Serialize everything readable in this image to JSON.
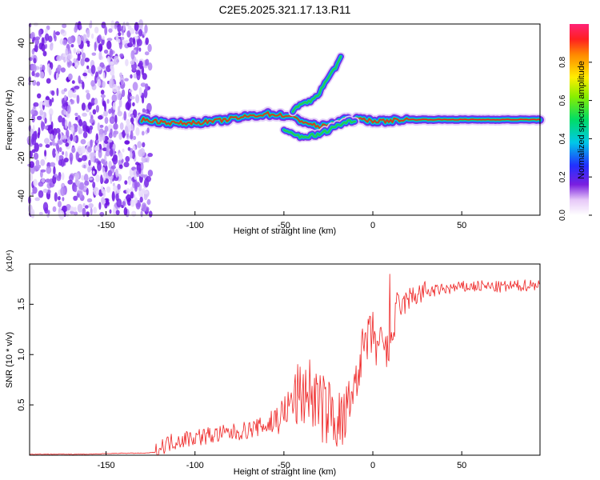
{
  "title": "C2E5.2025.321.17.13.R11",
  "colors": {
    "background": "#ffffff",
    "axis": "#000000",
    "snr_line": "#ee2222",
    "spectrum_low": "#7a1fe0",
    "spectrum_mid": "#22cc55",
    "spectrum_high": "#ee2222"
  },
  "chart_data": [
    {
      "type": "heatmap",
      "title": "",
      "xlabel": "Height of straight line (km)",
      "ylabel": "Frequency (Hz)",
      "xlim": [
        -193,
        94
      ],
      "ylim": [
        -50,
        50
      ],
      "x_ticks": [
        -150,
        -100,
        -50,
        0,
        50
      ],
      "x_tick_labels": [
        "-150",
        "-100",
        "-50",
        "0",
        "50"
      ],
      "y_ticks": [
        -40,
        -20,
        0,
        20,
        40
      ],
      "y_tick_labels": [
        "-40",
        "-20",
        "0",
        "20",
        "40"
      ],
      "noise_region_x": [
        -193,
        -125
      ],
      "signal_tracks": [
        {
          "name": "main",
          "points": [
            [
              -130,
              0
            ],
            [
              -110,
              -2
            ],
            [
              -90,
              -1
            ],
            [
              -75,
              1
            ],
            [
              -60,
              3
            ],
            [
              -48,
              2
            ],
            [
              -30,
              -4
            ],
            [
              -15,
              0
            ],
            [
              -5,
              0
            ],
            [
              5,
              -1
            ],
            [
              15,
              0
            ],
            [
              94,
              0
            ]
          ]
        },
        {
          "name": "upper branch",
          "points": [
            [
              -45,
              5
            ],
            [
              -35,
              10
            ],
            [
              -30,
              14
            ],
            [
              -25,
              22
            ],
            [
              -18,
              32
            ]
          ]
        },
        {
          "name": "lower branch",
          "points": [
            [
              -50,
              -6
            ],
            [
              -40,
              -9
            ],
            [
              -30,
              -8
            ],
            [
              -20,
              -3
            ],
            [
              -10,
              0
            ]
          ]
        }
      ],
      "colorbar": {
        "label": "Normalized spectral amplitude",
        "range": [
          0,
          1
        ],
        "ticks": [
          0.0,
          0.2,
          0.4,
          0.6,
          0.8
        ],
        "tick_labels": [
          "0.0",
          "0.2",
          "0.4",
          "0.6",
          "0.8"
        ]
      }
    },
    {
      "type": "line",
      "title": "",
      "xlabel": "Height of straight line (km)",
      "ylabel": "SNR (10 * v/v)",
      "y_multiplier": "(x10⁴)",
      "xlim": [
        -193,
        94
      ],
      "ylim": [
        0,
        1.9
      ],
      "x_ticks": [
        -150,
        -100,
        -50,
        0,
        50
      ],
      "x_tick_labels": [
        "-150",
        "-100",
        "-50",
        "0",
        "50"
      ],
      "y_ticks": [
        0.5,
        1.0,
        1.5
      ],
      "y_tick_labels": [
        "0.5",
        "1.0",
        "1.5"
      ],
      "series": [
        {
          "name": "SNR",
          "x": [
            -193,
            -180,
            -160,
            -140,
            -128,
            -122,
            -118,
            -110,
            -100,
            -90,
            -80,
            -70,
            -60,
            -55,
            -50,
            -45,
            -40,
            -36,
            -32,
            -28,
            -24,
            -20,
            -17,
            -14,
            -12,
            -10,
            -8,
            -6,
            -4,
            -2,
            0,
            2,
            5,
            8,
            10,
            12,
            15,
            20,
            25,
            30,
            40,
            50,
            60,
            70,
            80,
            94
          ],
          "values": [
            0.01,
            0.01,
            0.01,
            0.02,
            0.02,
            0.03,
            0.1,
            0.15,
            0.18,
            0.2,
            0.22,
            0.25,
            0.3,
            0.35,
            0.42,
            0.55,
            0.6,
            0.65,
            0.55,
            0.45,
            0.45,
            0.35,
            0.3,
            0.45,
            0.6,
            0.75,
            0.9,
            1.0,
            1.1,
            1.15,
            1.2,
            1.1,
            1.05,
            1.0,
            1.1,
            1.3,
            1.45,
            1.55,
            1.6,
            1.62,
            1.65,
            1.67,
            1.68,
            1.67,
            1.68,
            1.7
          ]
        }
      ]
    }
  ]
}
